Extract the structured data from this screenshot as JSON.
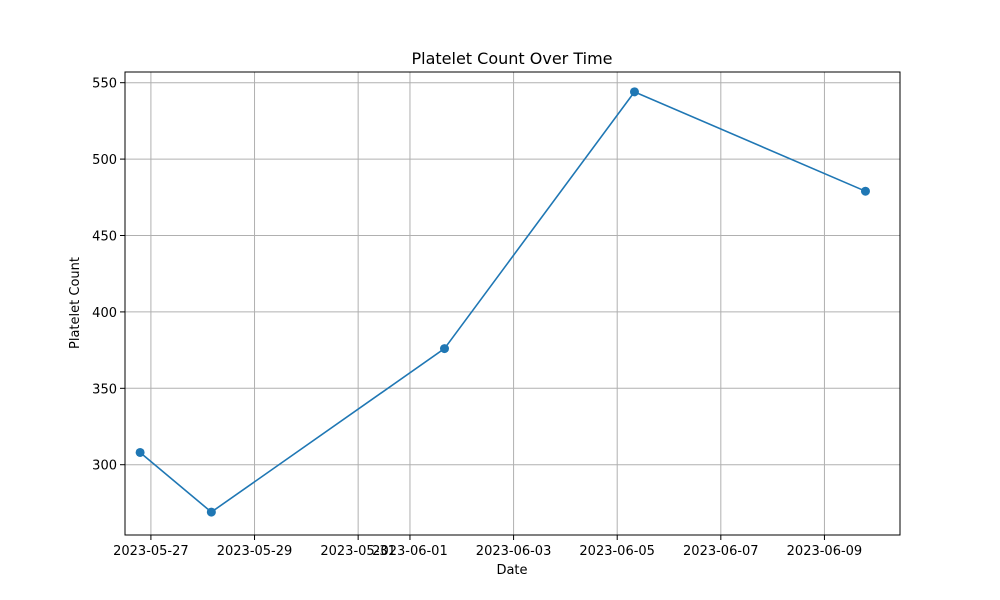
{
  "chart_data": {
    "type": "line",
    "title": "Platelet Count Over Time",
    "xlabel": "Date",
    "ylabel": "Platelet Count",
    "x_ticks": [
      "2023-05-27",
      "2023-05-29",
      "2023-05-31",
      "2023-06-01",
      "2023-06-03",
      "2023-06-05",
      "2023-06-07",
      "2023-06-09"
    ],
    "y_ticks": [
      300,
      350,
      400,
      450,
      500,
      550
    ],
    "xlim": [
      "2023-05-26T12:00",
      "2023-06-10T11:00"
    ],
    "ylim": [
      254,
      557
    ],
    "grid": true,
    "series": [
      {
        "color": "#1f77b4",
        "marker": "circle",
        "points": [
          {
            "x": "2023-05-26T19:00",
            "y": 308
          },
          {
            "x": "2023-05-28T04:00",
            "y": 269
          },
          {
            "x": "2023-06-01T16:00",
            "y": 376
          },
          {
            "x": "2023-06-05T08:00",
            "y": 544
          },
          {
            "x": "2023-06-09T19:00",
            "y": 479
          }
        ]
      }
    ]
  }
}
